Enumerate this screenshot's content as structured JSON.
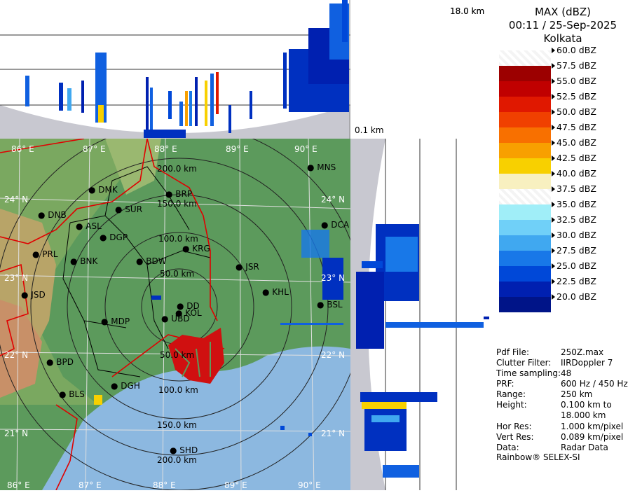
{
  "header": {
    "product": "MAX (dBZ)",
    "timestamp": "00:11 / 25-Sep-2025",
    "station": "Kolkata"
  },
  "cross_section": {
    "top_height_label": "18.0 km",
    "bottom_height_label": "0.1 km"
  },
  "legend": {
    "levels": [
      {
        "label": "60.0 dBZ",
        "color": "#ffffff"
      },
      {
        "label": "57.5 dBZ",
        "color": "#9c0000"
      },
      {
        "label": "55.0 dBZ",
        "color": "#c00000"
      },
      {
        "label": "52.5 dBZ",
        "color": "#e01800"
      },
      {
        "label": "50.0 dBZ",
        "color": "#f04000"
      },
      {
        "label": "47.5 dBZ",
        "color": "#f87000"
      },
      {
        "label": "45.0 dBZ",
        "color": "#f8a000"
      },
      {
        "label": "42.5 dBZ",
        "color": "#f8d000"
      },
      {
        "label": "40.0 dBZ",
        "color": "#f8f0c0"
      },
      {
        "label": "37.5 dBZ",
        "color": "#ffffff"
      },
      {
        "label": "35.0 dBZ",
        "color": "#a0eef8"
      },
      {
        "label": "32.5 dBZ",
        "color": "#70d0f8"
      },
      {
        "label": "30.0 dBZ",
        "color": "#40a8f0"
      },
      {
        "label": "27.5 dBZ",
        "color": "#1878e8"
      },
      {
        "label": "25.0 dBZ",
        "color": "#0048d8"
      },
      {
        "label": "22.5 dBZ",
        "color": "#0020b0"
      },
      {
        "label": "20.0 dBZ",
        "color": "#001488"
      }
    ]
  },
  "info": [
    {
      "key": "Pdf File:",
      "value": "250Z.max"
    },
    {
      "key": "Clutter Filter:",
      "value": "IIRDoppler 7"
    },
    {
      "key": "Time sampling:",
      "value": "48"
    },
    {
      "key": "PRF:",
      "value": "600 Hz / 450 Hz"
    },
    {
      "key": "Range:",
      "value": "250 km"
    },
    {
      "key": "Height:",
      "value": "0.100 km to"
    },
    {
      "key": "",
      "value": "18.000 km"
    },
    {
      "key": "Hor Res:",
      "value": "1.000 km/pixel"
    },
    {
      "key": "Vert Res:",
      "value": "0.089 km/pixel"
    },
    {
      "key": "Data:",
      "value": "Radar Data"
    }
  ],
  "footer": "Rainbow® SELEX-SI",
  "map": {
    "lon_labels": [
      "86° E",
      "87° E",
      "88° E",
      "89° E",
      "90° E"
    ],
    "lat_labels": [
      "24° N",
      "23° N",
      "22° N",
      "21° N"
    ],
    "range_rings": [
      "50.0 km",
      "100.0 km",
      "150.0 km",
      "200.0 km"
    ],
    "cities": [
      "MNS",
      "DMK",
      "BRP",
      "DNB",
      "SUR",
      "ASL",
      "DCA",
      "DGP",
      "KRG",
      "PRL",
      "BNK",
      "BDW",
      "JSR",
      "KHL",
      "JSD",
      "DD",
      "BSL",
      "KOL",
      "UBD",
      "MDP",
      "BPD",
      "DGH",
      "BLS",
      "SHD"
    ]
  }
}
